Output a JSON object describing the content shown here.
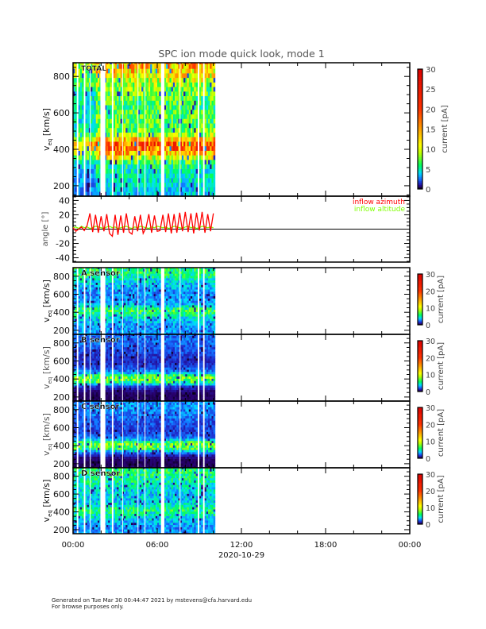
{
  "title": "SPC ion mode quick look, mode 1",
  "x_axis": {
    "tick_hours": [
      0,
      6,
      12,
      18,
      24
    ],
    "tick_labels": [
      "00:00",
      "06:00",
      "12:00",
      "18:00",
      "00:00"
    ],
    "date": "2020-10-29",
    "range_hours": [
      0,
      24
    ]
  },
  "footer": {
    "generated": "Generated on Tue Mar 30 00:44:47 2021 by mstevens@cfa.harvard.edu",
    "note": "For browse purposes only."
  },
  "chart_data": [
    {
      "id": "total",
      "type": "heatmap",
      "label": "TOTAL",
      "ylabel_main": "v",
      "ylabel_sub": "eq",
      "ylabel_unit": "[km/s]",
      "ylim": [
        143,
        875
      ],
      "yticks": [
        200,
        400,
        600,
        800
      ],
      "data_hours": [
        0,
        10.1
      ],
      "gaps_hours": [
        [
          0.3,
          0.35
        ],
        [
          0.8,
          0.85
        ],
        [
          1.2,
          1.25
        ],
        [
          1.95,
          2.3
        ],
        [
          2.8,
          2.85
        ],
        [
          3.5,
          3.55
        ],
        [
          4.6,
          4.65
        ],
        [
          5.1,
          5.15
        ],
        [
          6.3,
          6.5
        ],
        [
          7.6,
          7.65
        ],
        [
          8.9,
          8.95
        ],
        [
          9.3,
          9.35
        ]
      ],
      "profile": {
        "velocity": [
          175,
          225,
          275,
          325,
          375,
          425,
          475,
          525,
          575,
          625,
          675,
          725,
          775,
          825,
          875
        ],
        "current": [
          4,
          4.5,
          5,
          6,
          13,
          21,
          9,
          7,
          7,
          6.5,
          7,
          8,
          10,
          13,
          15
        ]
      },
      "colorbar": {
        "label": "current [pA]",
        "range": [
          0,
          30
        ],
        "ticks": [
          0,
          5,
          10,
          15,
          20,
          25,
          30
        ]
      }
    },
    {
      "id": "angle",
      "type": "line",
      "ylabel": "angle [°]",
      "ylim": [
        -46,
        46
      ],
      "yticks": [
        40,
        20,
        0,
        -20,
        -40
      ],
      "legend": [
        {
          "name": "inflow azimuth",
          "color": "#ff0000"
        },
        {
          "name": "inflow altitude",
          "color": "#80ff00"
        }
      ],
      "legend_placement": "top-right",
      "x_hours_step": 0.2,
      "series": [
        {
          "name": "inflow azimuth",
          "color": "#ff0000",
          "values": [
            2,
            -3,
            0,
            3,
            -2,
            5,
            22,
            -4,
            20,
            -5,
            18,
            -3,
            21,
            -6,
            -10,
            20,
            -8,
            19,
            -5,
            22,
            -4,
            -7,
            18,
            -3,
            20,
            -6,
            2,
            21,
            -5,
            19,
            -3,
            -2,
            20,
            -4,
            22,
            -6,
            21,
            -5,
            23,
            -3,
            24,
            -4,
            22,
            -6,
            23,
            -2,
            24,
            -5,
            21,
            -3,
            22
          ]
        },
        {
          "name": "inflow altitude",
          "color": "#80ff00",
          "values": [
            2,
            3,
            1,
            4,
            2,
            3,
            1,
            2,
            4,
            3,
            2,
            1,
            3,
            4,
            2,
            3,
            1,
            2,
            3,
            4,
            2,
            1,
            3,
            2,
            4,
            3,
            2,
            1,
            3,
            2,
            4,
            3,
            2,
            3,
            1,
            2,
            4,
            3,
            2,
            1,
            3,
            4,
            2,
            3,
            1,
            2,
            4,
            3,
            2,
            3,
            2
          ]
        }
      ]
    },
    {
      "id": "a",
      "type": "heatmap",
      "label": "A sensor",
      "ylabel_main": "v",
      "ylabel_sub": "eq",
      "ylabel_unit": "[km/s]",
      "ylim": [
        155,
        895
      ],
      "yticks": [
        200,
        400,
        600,
        800
      ],
      "data_hours": [
        0,
        10.1
      ],
      "gaps_hours": [
        [
          0.3,
          0.35
        ],
        [
          0.8,
          0.85
        ],
        [
          1.2,
          1.25
        ],
        [
          1.95,
          2.3
        ],
        [
          2.8,
          2.85
        ],
        [
          3.5,
          3.55
        ],
        [
          4.6,
          4.65
        ],
        [
          5.1,
          5.15
        ],
        [
          6.3,
          6.5
        ],
        [
          7.6,
          7.65
        ],
        [
          8.9,
          8.95
        ],
        [
          9.3,
          9.35
        ]
      ],
      "profile": {
        "velocity": [
          175,
          225,
          275,
          325,
          375,
          425,
          475,
          525,
          575,
          625,
          675,
          725,
          775,
          825,
          875
        ],
        "current": [
          3,
          3,
          3.5,
          4,
          5.5,
          6.5,
          4,
          3,
          3,
          3,
          3.5,
          4,
          5,
          6,
          6
        ]
      },
      "colorbar": {
        "label": "current [pA]",
        "range": [
          0,
          30
        ],
        "ticks": [
          0,
          10,
          20,
          30
        ]
      }
    },
    {
      "id": "b",
      "type": "heatmap",
      "label": "B sensor",
      "ylabel_main": "v",
      "ylabel_sub": "eq",
      "ylabel_unit": "[km/s]",
      "ylim": [
        155,
        895
      ],
      "yticks": [
        200,
        400,
        600,
        800
      ],
      "data_hours": [
        0,
        10.1
      ],
      "gaps_hours": [
        [
          0.3,
          0.35
        ],
        [
          0.8,
          0.85
        ],
        [
          1.2,
          1.25
        ],
        [
          1.95,
          2.3
        ],
        [
          2.8,
          2.85
        ],
        [
          3.5,
          3.55
        ],
        [
          4.6,
          4.65
        ],
        [
          5.1,
          5.15
        ],
        [
          6.3,
          6.5
        ],
        [
          7.6,
          7.65
        ],
        [
          8.9,
          8.95
        ],
        [
          9.3,
          9.35
        ]
      ],
      "profile": {
        "velocity": [
          175,
          225,
          275,
          325,
          375,
          425,
          475,
          525,
          575,
          625,
          675,
          725,
          775,
          825,
          875
        ],
        "current": [
          0.5,
          0.5,
          0.8,
          2,
          7,
          8,
          3,
          2,
          1.5,
          1.5,
          1.8,
          2,
          2.3,
          2.5,
          2.5
        ]
      },
      "colorbar": {
        "label": "current [pA]",
        "range": [
          0,
          30
        ],
        "ticks": [
          0,
          10,
          20,
          30
        ]
      }
    },
    {
      "id": "c",
      "type": "heatmap",
      "label": "C sensor",
      "ylabel_main": "v",
      "ylabel_sub": "eq",
      "ylabel_unit": "[km/s]",
      "ylim": [
        155,
        895
      ],
      "yticks": [
        200,
        400,
        600,
        800
      ],
      "data_hours": [
        0,
        10.1
      ],
      "gaps_hours": [
        [
          0.3,
          0.35
        ],
        [
          0.8,
          0.85
        ],
        [
          1.2,
          1.25
        ],
        [
          1.95,
          2.3
        ],
        [
          2.8,
          2.85
        ],
        [
          3.5,
          3.55
        ],
        [
          4.6,
          4.65
        ],
        [
          5.1,
          5.15
        ],
        [
          6.3,
          6.5
        ],
        [
          7.6,
          7.65
        ],
        [
          8.9,
          8.95
        ],
        [
          9.3,
          9.35
        ]
      ],
      "profile": {
        "velocity": [
          175,
          225,
          275,
          325,
          375,
          425,
          475,
          525,
          575,
          625,
          675,
          725,
          775,
          825,
          875
        ],
        "current": [
          0.5,
          0.5,
          0.8,
          2.5,
          7,
          7.5,
          3,
          2,
          1.8,
          2,
          2.2,
          2.5,
          2.8,
          3,
          3
        ]
      },
      "colorbar": {
        "label": "current [pA]",
        "range": [
          0,
          30
        ],
        "ticks": [
          0,
          10,
          20,
          30
        ]
      }
    },
    {
      "id": "d",
      "type": "heatmap",
      "label": "D sensor",
      "ylabel_main": "v",
      "ylabel_sub": "eq",
      "ylabel_unit": "[km/s]",
      "ylim": [
        155,
        895
      ],
      "yticks": [
        200,
        400,
        600,
        800
      ],
      "data_hours": [
        0,
        10.1
      ],
      "gaps_hours": [
        [
          0.3,
          0.35
        ],
        [
          0.8,
          0.85
        ],
        [
          1.2,
          1.25
        ],
        [
          1.95,
          2.3
        ],
        [
          2.8,
          2.85
        ],
        [
          3.5,
          3.55
        ],
        [
          4.6,
          4.65
        ],
        [
          5.1,
          5.15
        ],
        [
          6.3,
          6.5
        ],
        [
          7.6,
          7.65
        ],
        [
          8.9,
          8.95
        ],
        [
          9.3,
          9.35
        ]
      ],
      "profile": {
        "velocity": [
          175,
          225,
          275,
          325,
          375,
          425,
          475,
          525,
          575,
          625,
          675,
          725,
          775,
          825,
          875
        ],
        "current": [
          3,
          3,
          3.5,
          4,
          5,
          6,
          4.5,
          4,
          4,
          4,
          4.5,
          5,
          5.5,
          6,
          6
        ]
      },
      "colorbar": {
        "label": "current [pA]",
        "range": [
          0,
          30
        ],
        "ticks": [
          0,
          10,
          20,
          30
        ]
      }
    }
  ]
}
